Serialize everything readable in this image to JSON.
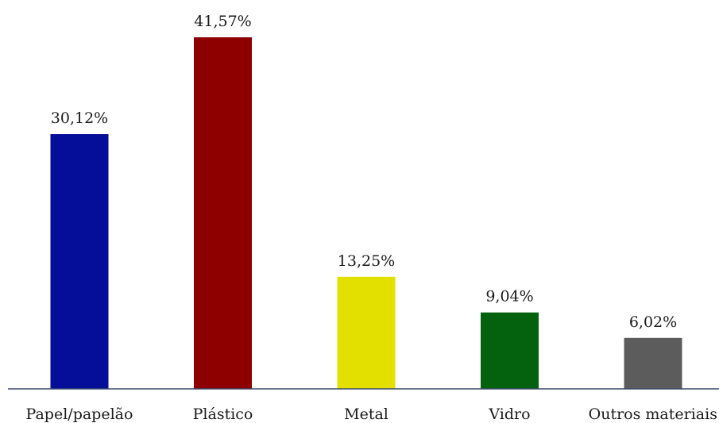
{
  "chart_data": {
    "type": "bar",
    "categories": [
      "Papel/papelão",
      "Plástico",
      "Metal",
      "Vidro",
      "Outros materiais"
    ],
    "values": [
      30.12,
      41.57,
      13.25,
      9.04,
      6.02
    ],
    "value_labels": [
      "30,12%",
      "41,57%",
      "13,25%",
      "9,04%",
      "6,02%"
    ],
    "colors": [
      "#050e98",
      "#8e0000",
      "#e3e000",
      "#04620f",
      "#5c5c5c"
    ],
    "axis_color": "#3d4b6b",
    "title": "",
    "xlabel": "",
    "ylabel": "",
    "ylim": [
      0,
      41.57
    ],
    "grid": false,
    "legend": "none"
  }
}
